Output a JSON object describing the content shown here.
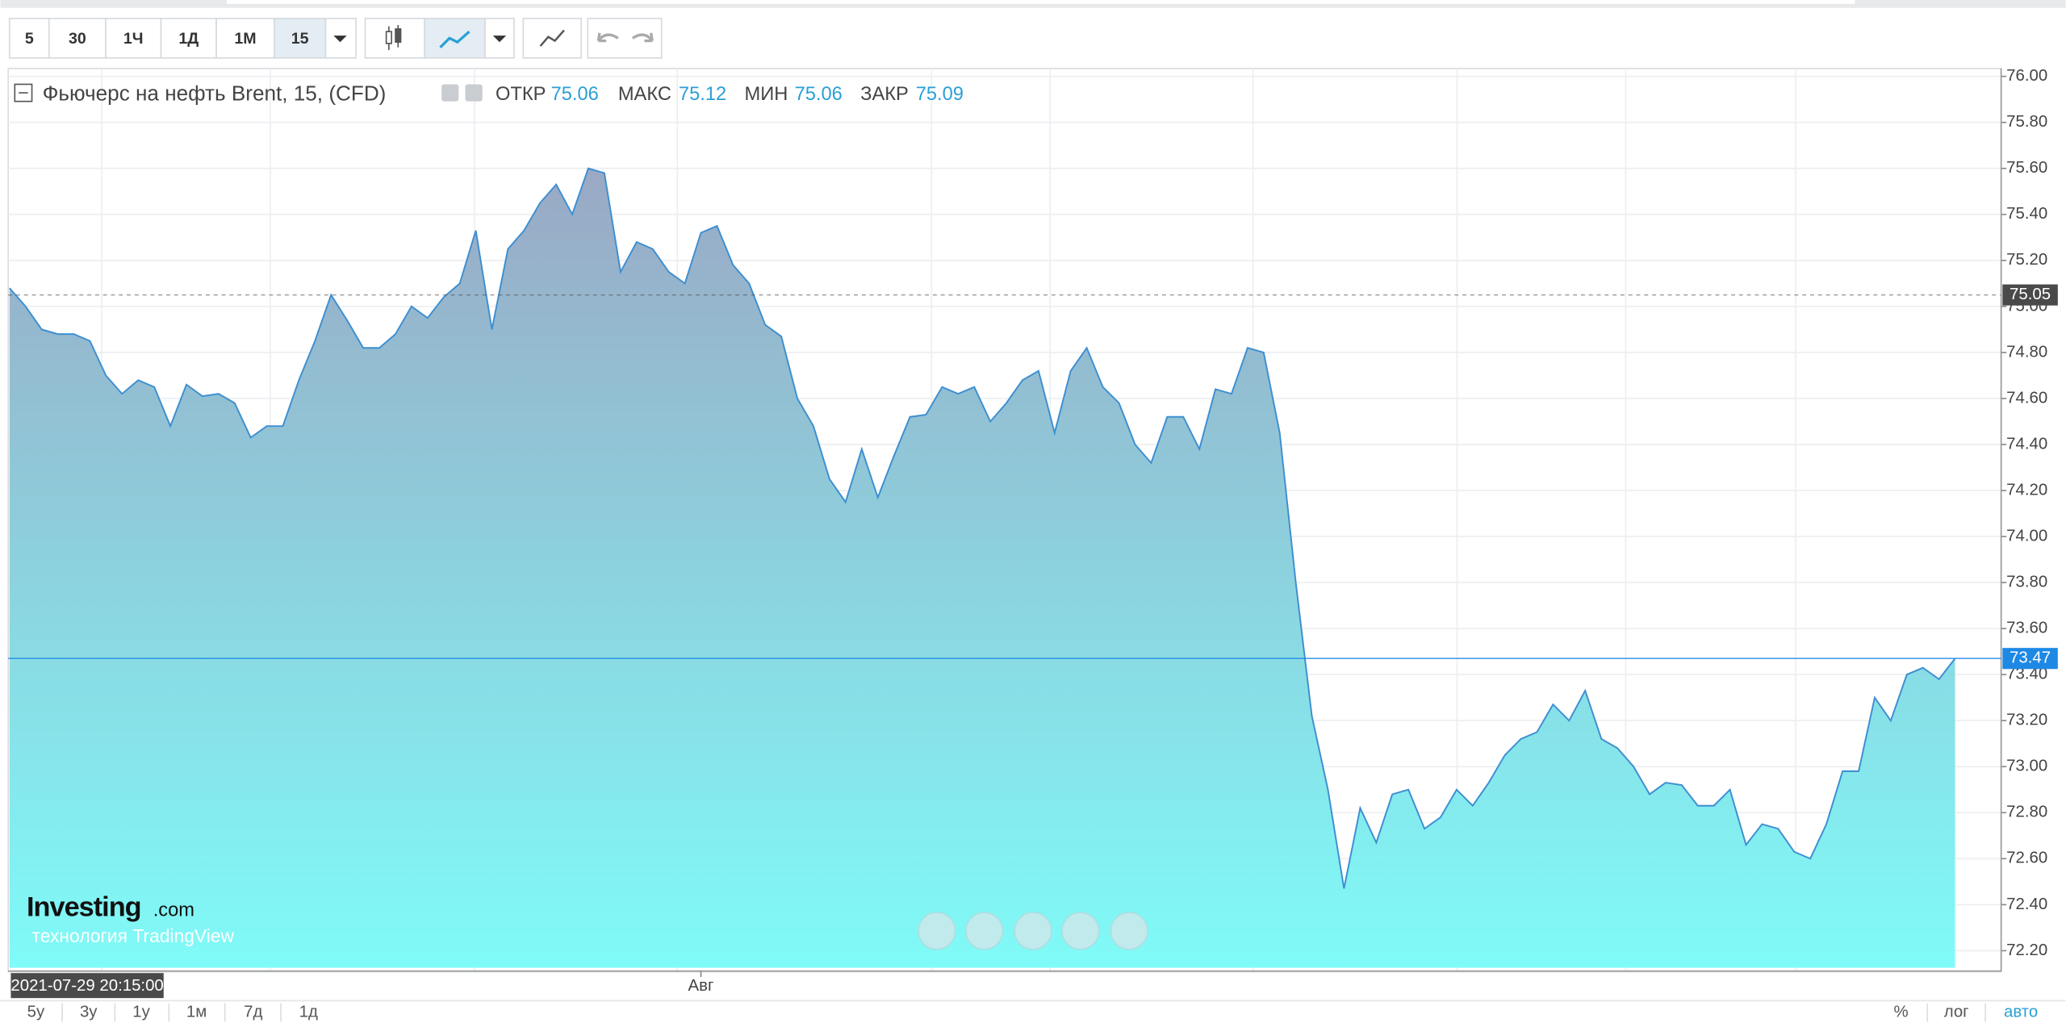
{
  "toolbar": {
    "intervals": [
      "5",
      "30",
      "1Ч",
      "1Д",
      "1М",
      "15"
    ]
  },
  "legend": {
    "title": "Фьючерс на нефть Brent, 15, (CFD)",
    "open_label": "ОТКР",
    "open": "75.06",
    "high_label": "МАКС",
    "high": "75.12",
    "low_label": "МИН",
    "low": "75.06",
    "close_label": "ЗАКР",
    "close": "75.09"
  },
  "chart_data": {
    "type": "area",
    "categories": [
      null,
      null,
      null,
      null,
      null,
      null,
      null,
      null,
      null,
      null,
      null,
      null,
      null,
      null,
      null,
      null,
      null,
      null,
      null,
      null,
      null,
      null,
      null,
      null,
      null,
      null,
      null,
      null,
      null,
      null,
      null,
      null,
      null,
      null,
      null,
      null,
      null,
      null,
      null,
      null,
      null,
      null,
      null,
      "Авг",
      null,
      null,
      null,
      null,
      null,
      null,
      null,
      null,
      null,
      null,
      null,
      null,
      null,
      null,
      null,
      null,
      null,
      null,
      null,
      null,
      null,
      null,
      null,
      null,
      null,
      null,
      null,
      null,
      null,
      null,
      null,
      null,
      null,
      null,
      null,
      null,
      null,
      null,
      null,
      null,
      null,
      null,
      null,
      null,
      null,
      null,
      null,
      null,
      null,
      null,
      null,
      null,
      null,
      null,
      null,
      null,
      null,
      null,
      null,
      null,
      null,
      null,
      null,
      null,
      null,
      null,
      null,
      null,
      null,
      null,
      null,
      null,
      null,
      null,
      null,
      null,
      null,
      null
    ],
    "values": [
      75.08,
      75.0,
      74.9,
      74.88,
      74.88,
      74.85,
      74.7,
      74.62,
      74.68,
      74.65,
      74.48,
      74.66,
      74.61,
      74.62,
      74.58,
      74.43,
      74.48,
      74.48,
      74.68,
      74.85,
      75.05,
      74.94,
      74.82,
      74.82,
      74.88,
      75.0,
      74.95,
      75.04,
      75.1,
      75.33,
      74.9,
      75.25,
      75.33,
      75.45,
      75.53,
      75.4,
      75.6,
      75.58,
      75.15,
      75.28,
      75.25,
      75.15,
      75.1,
      75.32,
      75.35,
      75.18,
      75.1,
      74.92,
      74.87,
      74.6,
      74.48,
      74.25,
      74.15,
      74.38,
      74.17,
      74.35,
      74.52,
      74.53,
      74.65,
      74.62,
      74.65,
      74.5,
      74.58,
      74.68,
      74.72,
      74.45,
      74.72,
      74.82,
      74.65,
      74.58,
      74.4,
      74.32,
      74.52,
      74.52,
      74.38,
      74.64,
      74.62,
      74.82,
      74.8,
      74.45,
      73.8,
      73.22,
      72.9,
      72.47,
      72.82,
      72.67,
      72.88,
      72.9,
      72.73,
      72.78,
      72.9,
      72.83,
      72.93,
      73.05,
      73.12,
      73.15,
      73.27,
      73.2,
      73.33,
      73.12,
      73.08,
      73.0,
      72.88,
      72.93,
      72.92,
      72.83,
      72.83,
      72.9,
      72.66,
      72.75,
      72.73,
      72.63,
      72.6,
      72.75,
      72.98,
      72.98,
      73.3,
      73.2,
      73.4,
      73.43,
      73.38,
      73.47
    ],
    "line_color": "#3d8fd1",
    "fill_top": "#9aa8c4",
    "fill_bottom": "#7ffbf8",
    "ylim": [
      72.2,
      76.0
    ],
    "yticks": [
      {
        "value": 72.2,
        "label": "72.20"
      },
      {
        "value": 72.4,
        "label": "72.40"
      },
      {
        "value": 72.6,
        "label": "72.60"
      },
      {
        "value": 72.8,
        "label": "72.80"
      },
      {
        "value": 73,
        "label": "73.00"
      },
      {
        "value": 73.2,
        "label": "73.20"
      },
      {
        "value": 73.4,
        "label": "73.40"
      },
      {
        "value": 73.6,
        "label": "73.60"
      },
      {
        "value": 73.8,
        "label": "73.80"
      },
      {
        "value": 74,
        "label": "74.00"
      },
      {
        "value": 74.2,
        "label": "74.20"
      },
      {
        "value": 74.4,
        "label": "74.40"
      },
      {
        "value": 74.6,
        "label": "74.60"
      },
      {
        "value": 74.8,
        "label": "74.80"
      },
      {
        "value": 75,
        "label": "75.00"
      },
      {
        "value": 75.2,
        "label": "75.20"
      },
      {
        "value": 75.4,
        "label": "75.40"
      },
      {
        "value": 75.6,
        "label": "75.60"
      },
      {
        "value": 75.8,
        "label": "75.80"
      },
      {
        "value": 76,
        "label": "76.00"
      }
    ],
    "grid": true,
    "reference_lines": [
      {
        "value": 75.05,
        "style": "dashed",
        "color": "#4a4a4a"
      },
      {
        "value": 73.47,
        "style": "solid",
        "color": "#1e88e5"
      }
    ]
  },
  "crosshair_time": "2021-07-29 20:15:00",
  "logo": {
    "name": "Investing",
    "suffix": ".com",
    "tagline": "технология TradingView"
  },
  "ranges": [
    "5у",
    "3у",
    "1у",
    "1м",
    "7д",
    "1д"
  ],
  "scale_options": [
    "%",
    "лог",
    "авто"
  ]
}
